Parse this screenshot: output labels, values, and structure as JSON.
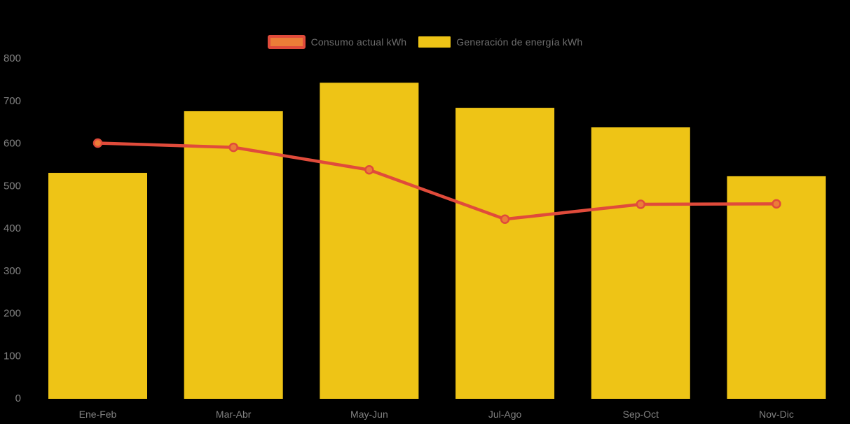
{
  "chart_data": {
    "type": "bar",
    "categories": [
      "Ene-Feb",
      "Mar-Abr",
      "May-Jun",
      "Jul-Ago",
      "Sep-Oct",
      "Nov-Dic"
    ],
    "series": [
      {
        "name": "Consumo actual kWh",
        "type": "line",
        "values": [
          600,
          590,
          537,
          421,
          456,
          457
        ],
        "line_color": "#e04b3b",
        "marker_fill": "#eb7d37",
        "marker_stroke": "#e04b3b"
      },
      {
        "name": "Generación de energía kWh",
        "type": "bar",
        "values": [
          530,
          675,
          742,
          683,
          637,
          522
        ],
        "color": "#eec416"
      }
    ],
    "ylim": [
      0,
      800
    ],
    "yticks": [
      "0",
      "100",
      "200",
      "300",
      "400",
      "500",
      "600",
      "700",
      "800"
    ],
    "grid": false,
    "legend_position": "top",
    "background_color": "#000000",
    "axis_text_color": "#818181",
    "legend_text_color": "#6e6e6e"
  }
}
